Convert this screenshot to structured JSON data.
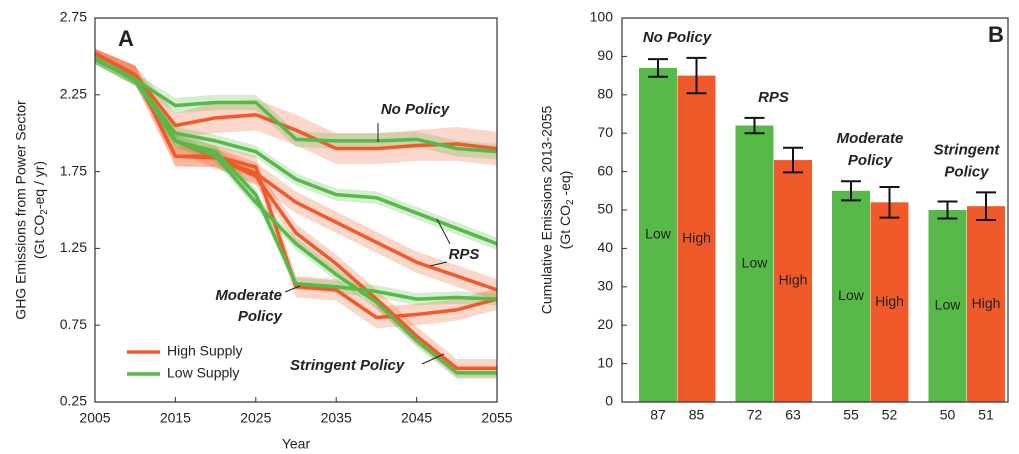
{
  "chart_data": [
    {
      "type": "line",
      "panel_label": "A",
      "xlabel": "Year",
      "ylabel": [
        "GHG Emissions from Power Sector",
        [
          "(Gt CO",
          "2",
          "-eq / yr)"
        ]
      ],
      "x": [
        2005,
        2010,
        2015,
        2020,
        2025,
        2030,
        2035,
        2040,
        2045,
        2050,
        2055
      ],
      "xlim": [
        2005,
        2055
      ],
      "xticks": [
        2005,
        2015,
        2025,
        2035,
        2045,
        2055
      ],
      "ylim": [
        0.25,
        2.75
      ],
      "yticks": [
        0.25,
        0.75,
        1.25,
        1.75,
        2.25,
        2.75
      ],
      "legend": [
        {
          "name": "High Supply",
          "color": "#f05a2b"
        },
        {
          "name": "Low Supply",
          "color": "#57b947"
        }
      ],
      "scenarios": [
        {
          "label": [
            "No Policy"
          ],
          "high": {
            "values": [
              2.52,
              2.38,
              2.05,
              2.1,
              2.12,
              2.02,
              1.9,
              1.9,
              1.92,
              1.93,
              1.9
            ],
            "errors": [
              0.03,
              0.06,
              0.08,
              0.1,
              0.1,
              0.1,
              0.1,
              0.1,
              0.1,
              0.11,
              0.11
            ]
          },
          "low": {
            "values": [
              2.48,
              2.35,
              2.18,
              2.2,
              2.2,
              1.96,
              1.95,
              1.95,
              1.96,
              1.9,
              1.88
            ],
            "errors": [
              0.03,
              0.04,
              0.05,
              0.05,
              0.05,
              0.05,
              0.05,
              0.05,
              0.05,
              0.05,
              0.05
            ]
          }
        },
        {
          "label": [
            "RPS"
          ],
          "high": {
            "values": [
              2.52,
              2.38,
              1.95,
              1.84,
              1.74,
              1.55,
              1.42,
              1.29,
              1.16,
              1.07,
              0.98
            ],
            "errors": [
              0.03,
              0.06,
              0.07,
              0.07,
              0.07,
              0.07,
              0.07,
              0.07,
              0.07,
              0.07,
              0.07
            ]
          },
          "low": {
            "values": [
              2.48,
              2.35,
              2.0,
              1.95,
              1.88,
              1.7,
              1.6,
              1.58,
              1.48,
              1.38,
              1.28
            ],
            "errors": [
              0.03,
              0.04,
              0.04,
              0.04,
              0.04,
              0.04,
              0.04,
              0.04,
              0.04,
              0.04,
              0.04
            ]
          }
        },
        {
          "label": [
            "Moderate",
            "Policy"
          ],
          "high": {
            "values": [
              2.52,
              2.38,
              1.85,
              1.85,
              1.78,
              1.0,
              0.98,
              0.8,
              0.82,
              0.85,
              0.92
            ],
            "errors": [
              0.03,
              0.06,
              0.07,
              0.07,
              0.07,
              0.07,
              0.07,
              0.07,
              0.07,
              0.07,
              0.07
            ]
          },
          "low": {
            "values": [
              2.48,
              2.35,
              1.95,
              1.88,
              1.6,
              1.02,
              1.0,
              0.97,
              0.92,
              0.93,
              0.92
            ],
            "errors": [
              0.03,
              0.04,
              0.04,
              0.04,
              0.04,
              0.04,
              0.04,
              0.04,
              0.04,
              0.04,
              0.04
            ]
          }
        },
        {
          "label": [
            "Stringent Policy"
          ],
          "high": {
            "values": [
              2.52,
              2.38,
              1.85,
              1.84,
              1.72,
              1.35,
              1.15,
              0.92,
              0.68,
              0.47,
              0.47
            ],
            "errors": [
              0.03,
              0.06,
              0.06,
              0.06,
              0.06,
              0.06,
              0.06,
              0.06,
              0.06,
              0.06,
              0.06
            ]
          },
          "low": {
            "values": [
              2.48,
              2.35,
              1.95,
              1.85,
              1.55,
              1.28,
              1.08,
              0.9,
              0.65,
              0.44,
              0.44
            ],
            "errors": [
              0.03,
              0.04,
              0.04,
              0.04,
              0.04,
              0.04,
              0.04,
              0.04,
              0.04,
              0.04,
              0.04
            ]
          }
        }
      ]
    },
    {
      "type": "bar",
      "panel_label": "B",
      "ylabel": [
        "Cumulative Emissions 2013-2055",
        [
          "(Gt CO",
          "2",
          " -eq)"
        ]
      ],
      "categories": [
        [
          "No Policy"
        ],
        [
          "RPS"
        ],
        [
          "Moderate",
          "Policy"
        ],
        [
          "Stringent",
          "Policy"
        ]
      ],
      "ylim": [
        0,
        100
      ],
      "yticks": [
        0,
        10,
        20,
        30,
        40,
        50,
        60,
        70,
        80,
        90,
        100
      ],
      "series": [
        {
          "name": "Low",
          "color": "#57b947",
          "values": [
            87,
            72,
            55,
            50
          ],
          "errors": [
            2.3,
            2,
            2.5,
            2.2
          ]
        },
        {
          "name": "High",
          "color": "#f05a2b",
          "values": [
            85,
            63,
            52,
            51
          ],
          "errors": [
            4.6,
            3.2,
            4,
            3.6
          ]
        }
      ]
    }
  ]
}
